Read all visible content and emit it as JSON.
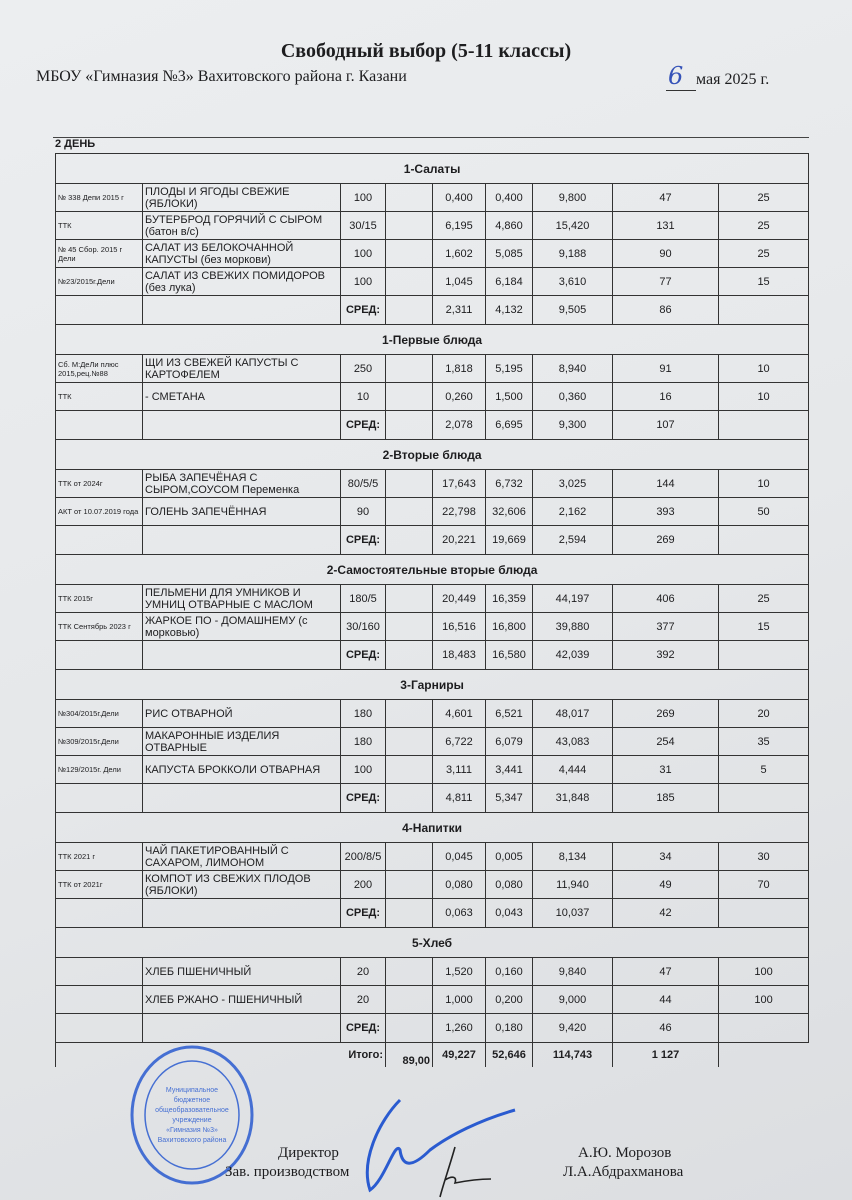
{
  "header": {
    "title": "Свободный выбор (5-11 классы)",
    "school": "МБОУ «Гимназия №3» Вахитовского района г. Казани",
    "date_day": "6",
    "date_rest": "мая 2025 г.",
    "day_label": "2 ДЕНЬ"
  },
  "sections": [
    {
      "title": "1-Салаты",
      "rows": [
        {
          "code": "№ 338 Депи 2015 г",
          "name": "ПЛОДЫ И ЯГОДЫ СВЕЖИЕ (ЯБЛОКИ)",
          "portion": "100",
          "protein": "0,400",
          "fat": "0,400",
          "carbs": "9,800",
          "kcal": "47",
          "price": "25"
        },
        {
          "code": "ТТК",
          "name": "БУТЕРБРОД ГОРЯЧИЙ С СЫРОМ (батон в/с)",
          "portion": "30/15",
          "protein": "6,195",
          "fat": "4,860",
          "carbs": "15,420",
          "kcal": "131",
          "price": "25"
        },
        {
          "code": "№ 45 Сбор. 2015 г Дели",
          "name": "САЛАТ ИЗ БЕЛОКОЧАННОЙ КАПУСТЫ (без моркови)",
          "portion": "100",
          "protein": "1,602",
          "fat": "5,085",
          "carbs": "9,188",
          "kcal": "90",
          "price": "25"
        },
        {
          "code": "№23/2015г.Дели",
          "name": "САЛАТ ИЗ СВЕЖИХ ПОМИДОРОВ (без лука)",
          "portion": "100",
          "protein": "1,045",
          "fat": "6,184",
          "carbs": "3,610",
          "kcal": "77",
          "price": "15"
        }
      ],
      "avg": {
        "label": "СРЕД:",
        "protein": "2,311",
        "fat": "4,132",
        "carbs": "9,505",
        "kcal": "86"
      }
    },
    {
      "title": "1-Первые блюда",
      "rows": [
        {
          "code": "Сб. М:ДеЛи плюс 2015,рец.№88",
          "name": "ЩИ ИЗ СВЕЖЕЙ КАПУСТЫ С КАРТОФЕЛЕМ",
          "portion": "250",
          "protein": "1,818",
          "fat": "5,195",
          "carbs": "8,940",
          "kcal": "91",
          "price": "10"
        },
        {
          "code": "ТТК",
          "name": "- СМЕТАНА",
          "portion": "10",
          "protein": "0,260",
          "fat": "1,500",
          "carbs": "0,360",
          "kcal": "16",
          "price": "10"
        }
      ],
      "avg": {
        "label": "СРЕД:",
        "protein": "2,078",
        "fat": "6,695",
        "carbs": "9,300",
        "kcal": "107"
      }
    },
    {
      "title": "2-Вторые блюда",
      "rows": [
        {
          "code": "ТТК от 2024г",
          "name": "РЫБА ЗАПЕЧЁНАЯ С СЫРОМ,СОУСОМ Переменка",
          "portion": "80/5/5",
          "protein": "17,643",
          "fat": "6,732",
          "carbs": "3,025",
          "kcal": "144",
          "price": "10"
        },
        {
          "code": "АКТ от 10.07.2019 года",
          "name": "ГОЛЕНЬ ЗАПЕЧЁННАЯ",
          "portion": "90",
          "protein": "22,798",
          "fat": "32,606",
          "carbs": "2,162",
          "kcal": "393",
          "price": "50"
        }
      ],
      "avg": {
        "label": "СРЕД:",
        "protein": "20,221",
        "fat": "19,669",
        "carbs": "2,594",
        "kcal": "269"
      }
    },
    {
      "title": "2-Самостоятельные вторые блюда",
      "rows": [
        {
          "code": "ТТК 2015г",
          "name": "ПЕЛЬМЕНИ ДЛЯ УМНИКОВ И УМНИЦ ОТВАРНЫЕ С МАСЛОМ",
          "portion": "180/5",
          "protein": "20,449",
          "fat": "16,359",
          "carbs": "44,197",
          "kcal": "406",
          "price": "25"
        },
        {
          "code": "ТТК Сентябрь 2023 г",
          "name": "ЖАРКОЕ ПО - ДОМАШНЕМУ (с морковью)",
          "portion": "30/160",
          "protein": "16,516",
          "fat": "16,800",
          "carbs": "39,880",
          "kcal": "377",
          "price": "15"
        }
      ],
      "avg": {
        "label": "СРЕД:",
        "protein": "18,483",
        "fat": "16,580",
        "carbs": "42,039",
        "kcal": "392"
      }
    },
    {
      "title": "3-Гарниры",
      "rows": [
        {
          "code": "№304/2015г.Дели",
          "name": "РИС ОТВАРНОЙ",
          "portion": "180",
          "protein": "4,601",
          "fat": "6,521",
          "carbs": "48,017",
          "kcal": "269",
          "price": "20"
        },
        {
          "code": "№309/2015г.Дели",
          "name": "МАКАРОННЫЕ ИЗДЕЛИЯ ОТВАРНЫЕ",
          "portion": "180",
          "protein": "6,722",
          "fat": "6,079",
          "carbs": "43,083",
          "kcal": "254",
          "price": "35"
        },
        {
          "code": "№129/2015г. Дели",
          "name": "КАПУСТА БРОККОЛИ ОТВАРНАЯ",
          "portion": "100",
          "protein": "3,111",
          "fat": "3,441",
          "carbs": "4,444",
          "kcal": "31",
          "price": "5"
        }
      ],
      "avg": {
        "label": "СРЕД:",
        "protein": "4,811",
        "fat": "5,347",
        "carbs": "31,848",
        "kcal": "185"
      }
    },
    {
      "title": "4-Напитки",
      "rows": [
        {
          "code": "ТТК 2021 г",
          "name": "ЧАЙ ПАКЕТИРОВАННЫЙ С САХАРОМ, ЛИМОНОМ",
          "portion": "200/8/5",
          "protein": "0,045",
          "fat": "0,005",
          "carbs": "8,134",
          "kcal": "34",
          "price": "30"
        },
        {
          "code": "ТТК от 2021г",
          "name": "КОМПОТ ИЗ СВЕЖИХ ПЛОДОВ (ЯБЛОКИ)",
          "portion": "200",
          "protein": "0,080",
          "fat": "0,080",
          "carbs": "11,940",
          "kcal": "49",
          "price": "70"
        }
      ],
      "avg": {
        "label": "СРЕД:",
        "protein": "0,063",
        "fat": "0,043",
        "carbs": "10,037",
        "kcal": "42"
      }
    },
    {
      "title": "5-Хлеб",
      "rows": [
        {
          "code": "",
          "name": "ХЛЕБ ПШЕНИЧНЫЙ",
          "portion": "20",
          "protein": "1,520",
          "fat": "0,160",
          "carbs": "9,840",
          "kcal": "47",
          "price": "100"
        },
        {
          "code": "",
          "name": "ХЛЕБ РЖАНО - ПШЕНИЧНЫЙ",
          "portion": "20",
          "protein": "1,000",
          "fat": "0,200",
          "carbs": "9,000",
          "kcal": "44",
          "price": "100"
        }
      ],
      "avg": {
        "label": "СРЕД:",
        "protein": "1,260",
        "fat": "0,180",
        "carbs": "9,420",
        "kcal": "46"
      }
    }
  ],
  "total": {
    "label": "Итого:",
    "sum": "89,00",
    "protein": "49,227",
    "fat": "52,646",
    "carbs": "114,743",
    "kcal": "1 127"
  },
  "signatures": {
    "director_role": "Директор",
    "director_name": "А.Ю. Морозов",
    "manager_role": "Зав. производством",
    "manager_name": "Л.А.Абдрахманова"
  },
  "stamp": {
    "text": "Муниципальное бюджетное общеобразовательное учреждение «Гимназия №3» Вахитовского района г. Казани",
    "color": "#2a5bd0"
  },
  "colors": {
    "ink_blue": "#2a5bd0",
    "text": "#1d1d1f"
  }
}
